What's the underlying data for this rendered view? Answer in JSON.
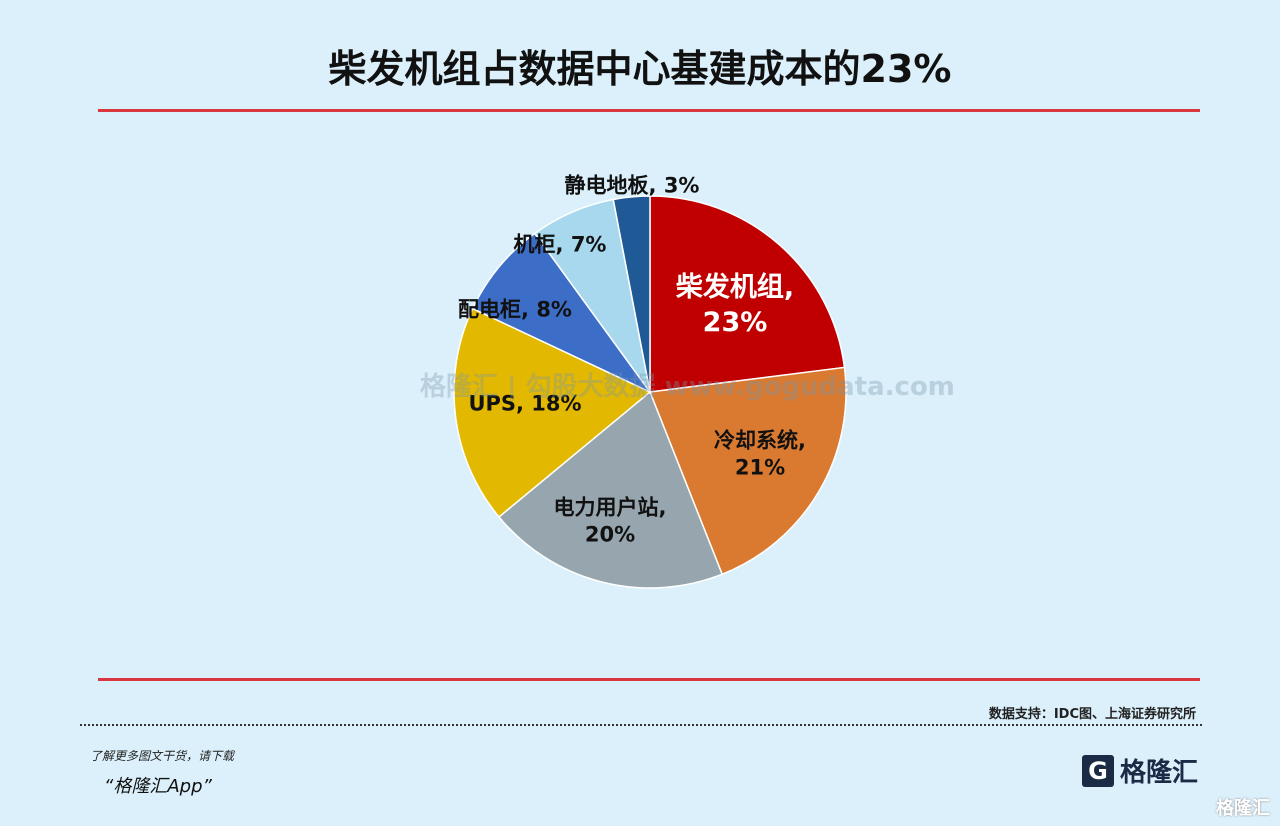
{
  "chart_data": {
    "type": "pie",
    "title": "柴发机组占数据中心基建成本的23%",
    "start": "top",
    "direction": "clockwise",
    "slices": [
      {
        "label": "柴发机组,",
        "value": 23,
        "value_label": "23%",
        "color": "#c00000",
        "text_color": "#ffffff"
      },
      {
        "label": "冷却系统,",
        "value": 21,
        "value_label": "21%",
        "color": "#d97a30",
        "text_color": "#111111"
      },
      {
        "label": "电力用户站,",
        "value": 20,
        "value_label": "20%",
        "color": "#97a6ae",
        "text_color": "#111111"
      },
      {
        "label": "UPS,",
        "value": 18,
        "value_label": "18%",
        "color": "#e3b800",
        "text_color": "#111111"
      },
      {
        "label": "配电柜,",
        "value": 8,
        "value_label": "8%",
        "color": "#3c6ec8",
        "text_color": "#111111"
      },
      {
        "label": "机柜,",
        "value": 7,
        "value_label": "7%",
        "color": "#a8d8ee",
        "text_color": "#111111"
      },
      {
        "label": "静电地板,",
        "value": 3,
        "value_label": "3%",
        "color": "#1f5a96",
        "text_color": "#111111"
      }
    ]
  },
  "watermark": "格隆汇 | 勾股大数据 www.gogudata.com",
  "source": "数据支持：IDC图、上海证券研究所",
  "promo": {
    "line1": "了解更多图文干货，请下载",
    "line2": "“格隆汇App”"
  },
  "logo": {
    "mark": "G",
    "text": "格隆汇"
  },
  "corner_mark": "格隆汇"
}
